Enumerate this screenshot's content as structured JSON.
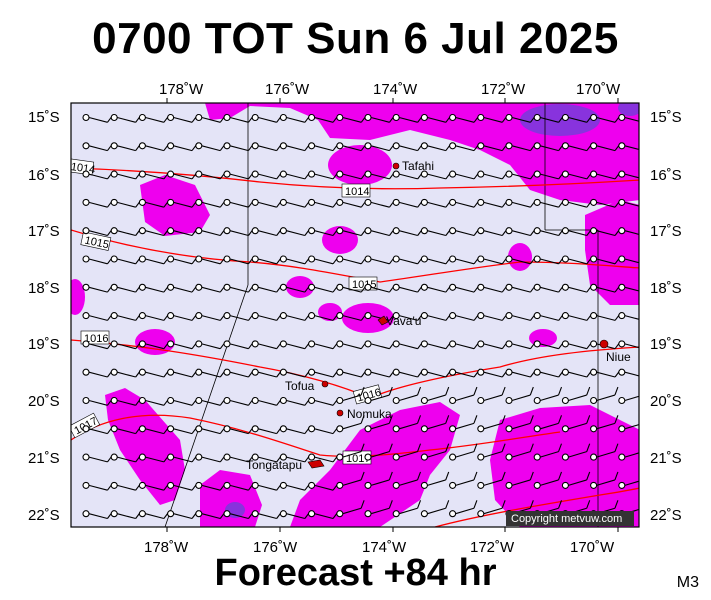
{
  "title": "0700 TOT Sun 6 Jul 2025",
  "footer": "Forecast +84 hr",
  "model_tag": "M3",
  "copyright": "Copyright metvuw.com",
  "colors": {
    "ocean": "#e4e4f7",
    "wind_strong": "#ee00ee",
    "wind_medium": "#dd88ee",
    "wind_max": "#8833dd",
    "isobar": "#ff0000",
    "land": "#cc0000"
  },
  "axes": {
    "top": [
      "178˚W",
      "176˚W",
      "174˚W",
      "172˚W",
      "170˚W"
    ],
    "bottom": [
      "178˚W",
      "176˚W",
      "174˚W",
      "172˚W",
      "170˚W"
    ],
    "left": [
      "15˚S",
      "16˚S",
      "17˚S",
      "18˚S",
      "19˚S",
      "20˚S",
      "21˚S",
      "22˚S"
    ],
    "right": [
      "15˚S",
      "16˚S",
      "17˚S",
      "18˚S",
      "19˚S",
      "20˚S",
      "21˚S",
      "22˚S"
    ]
  },
  "isobars": [
    {
      "label": "1014"
    },
    {
      "label": "1014"
    },
    {
      "label": "1015"
    },
    {
      "label": "1015"
    },
    {
      "label": "1016"
    },
    {
      "label": "1016"
    },
    {
      "label": "1017"
    },
    {
      "label": "1017"
    }
  ],
  "places": [
    {
      "name": "Tafahi"
    },
    {
      "name": "Vava'u"
    },
    {
      "name": "Niue"
    },
    {
      "name": "Tofua"
    },
    {
      "name": "Nomuka"
    },
    {
      "name": "Tongatapu"
    }
  ]
}
